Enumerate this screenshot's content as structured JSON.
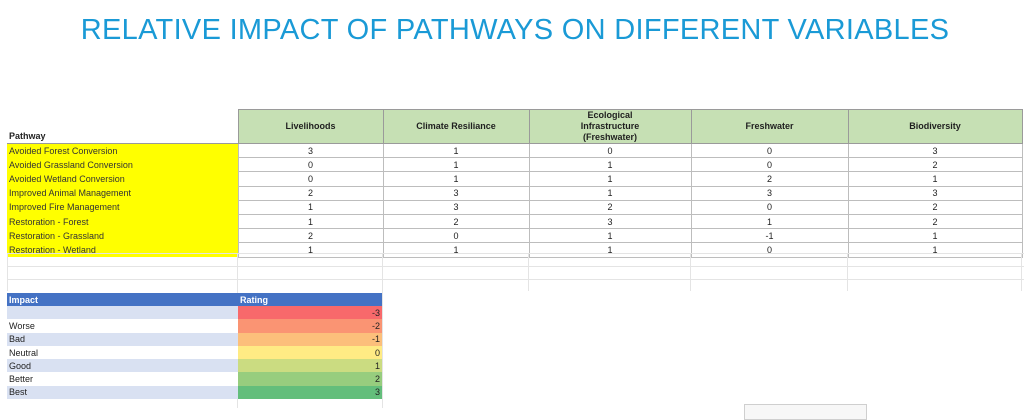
{
  "title": "RELATIVE IMPACT OF PATHWAYS ON DIFFERENT VARIABLES",
  "table": {
    "row_header": "Pathway",
    "columns": [
      "Livelihoods",
      "Climate Resiliance",
      "Ecological Infrastructure (Freshwater)",
      "Freshwater",
      "Biodiversity"
    ],
    "rows": [
      {
        "pathway": "Avoided Forest Conversion",
        "values": [
          "3",
          "1",
          "0",
          "0",
          "3"
        ]
      },
      {
        "pathway": "Avoided Grassland Conversion",
        "values": [
          "0",
          "1",
          "1",
          "0",
          "2"
        ]
      },
      {
        "pathway": "Avoided Wetland Conversion",
        "values": [
          "0",
          "1",
          "1",
          "2",
          "1"
        ]
      },
      {
        "pathway": "Improved Animal Management",
        "values": [
          "2",
          "3",
          "1",
          "3",
          "3"
        ]
      },
      {
        "pathway": "Improved Fire Management",
        "values": [
          "1",
          "3",
          "2",
          "0",
          "2"
        ]
      },
      {
        "pathway": "Restoration - Forest",
        "values": [
          "1",
          "2",
          "3",
          "1",
          "2"
        ]
      },
      {
        "pathway": "Restoration - Grassland",
        "values": [
          "2",
          "0",
          "1",
          "-1",
          "1"
        ]
      },
      {
        "pathway": "Restoration - Wetland",
        "values": [
          "1",
          "1",
          "1",
          "0",
          "1"
        ]
      }
    ]
  },
  "legend": {
    "impact_header": "Impact",
    "rating_header": "Rating",
    "rows": [
      {
        "impact": "",
        "rating": "-3",
        "color": "#f8696b"
      },
      {
        "impact": "Worse",
        "rating": "-2",
        "color": "#fa9473"
      },
      {
        "impact": "Bad",
        "rating": "-1",
        "color": "#fcbf7b"
      },
      {
        "impact": "Neutral",
        "rating": "0",
        "color": "#ffeb84"
      },
      {
        "impact": "Good",
        "rating": "1",
        "color": "#cbdc81"
      },
      {
        "impact": "Better",
        "rating": "2",
        "color": "#97cd7e"
      },
      {
        "impact": "Best",
        "rating": "3",
        "color": "#63be7b"
      }
    ]
  }
}
